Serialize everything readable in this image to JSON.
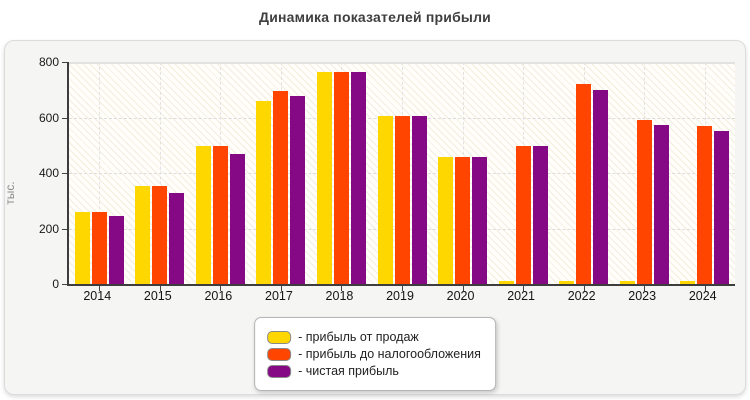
{
  "title": "Динамика показателей прибыли",
  "y_axis": {
    "label": "тыс.",
    "ticks": [
      0,
      200,
      400,
      600,
      800
    ],
    "max": 800
  },
  "legend": {
    "items": [
      {
        "label": "- прибыль от продаж",
        "color": "#FFD700"
      },
      {
        "label": "- прибыль до налогообложения",
        "color": "#FF4500"
      },
      {
        "label": "- чистая прибыль",
        "color": "#850885"
      }
    ]
  },
  "chart_data": {
    "type": "bar",
    "title": "Динамика показателей прибыли",
    "xlabel": "",
    "ylabel": "тыс.",
    "ylim": [
      0,
      800
    ],
    "grid": true,
    "legend_position": "bottom-center",
    "categories": [
      "2014",
      "2015",
      "2016",
      "2017",
      "2018",
      "2019",
      "2020",
      "2021",
      "2022",
      "2023",
      "2024"
    ],
    "series": [
      {
        "name": "прибыль от продаж",
        "color": "#FFD700",
        "values": [
          260,
          352,
          497,
          658,
          764,
          606,
          458,
          10,
          10,
          10,
          10
        ]
      },
      {
        "name": "прибыль до налогообложения",
        "color": "#FF4500",
        "values": [
          260,
          352,
          496,
          695,
          764,
          606,
          458,
          496,
          722,
          591,
          569
        ]
      },
      {
        "name": "чистая прибыль",
        "color": "#850885",
        "values": [
          245,
          328,
          469,
          676,
          764,
          606,
          458,
          496,
          700,
          573,
          553
        ]
      }
    ]
  }
}
